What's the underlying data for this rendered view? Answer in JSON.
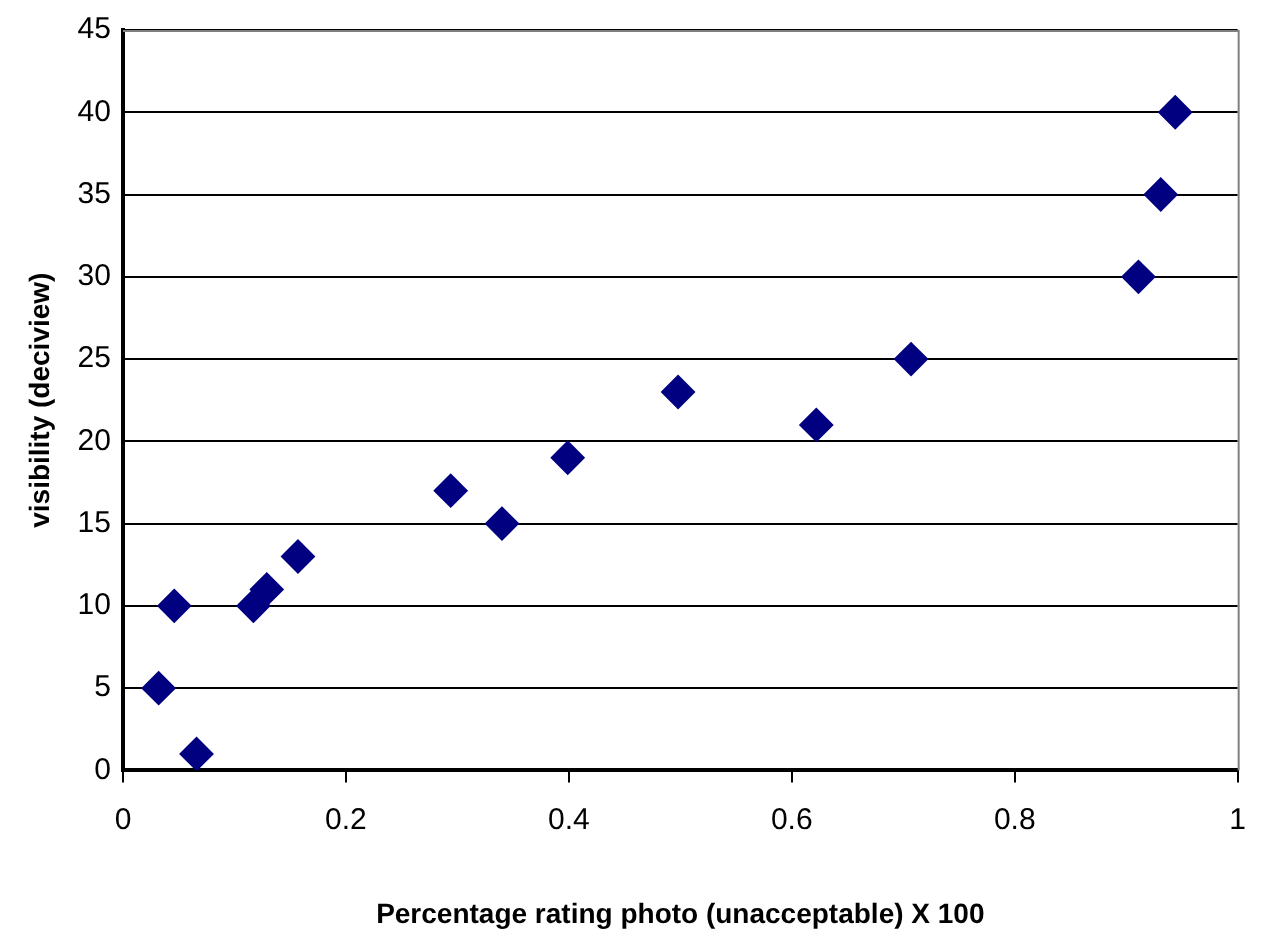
{
  "chart_data": {
    "type": "scatter",
    "xlabel": "Percentage rating photo (unacceptable) X 100",
    "ylabel": "visibility (deciview)",
    "x": [
      0.032,
      0.046,
      0.066,
      0.117,
      0.129,
      0.157,
      0.294,
      0.34,
      0.399,
      0.498,
      0.622,
      0.707,
      0.911,
      0.931,
      0.944
    ],
    "series": [
      {
        "color": "#000080",
        "values": [
          5,
          10,
          1,
          10,
          11,
          13,
          17,
          15,
          19,
          23,
          21,
          25,
          30,
          35,
          40
        ]
      }
    ],
    "xlim": [
      0,
      1
    ],
    "xticks": [
      0,
      0.2,
      0.4,
      0.6,
      0.8,
      1
    ],
    "ylim": [
      0,
      45
    ],
    "yticks": [
      0,
      5,
      10,
      15,
      20,
      25,
      30,
      35,
      40,
      45
    ],
    "grid": "y",
    "legend": false,
    "marker": "diamond"
  }
}
